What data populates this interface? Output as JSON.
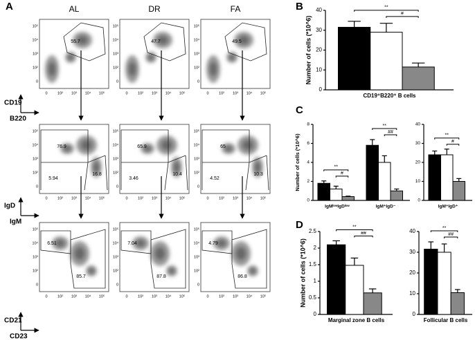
{
  "panel_labels": [
    "A",
    "B",
    "C",
    "D"
  ],
  "flow": {
    "columns": [
      "AL",
      "DR",
      "FA"
    ],
    "ticks": [
      "0",
      "10²",
      "10³",
      "10⁴",
      "10⁵"
    ],
    "rows": [
      {
        "y_label": "CD19",
        "x_label": "B220",
        "gates": [
          [
            55.7
          ],
          [
            47.7
          ],
          [
            49.5
          ]
        ]
      },
      {
        "y_label": "IgD",
        "x_label": "IgM",
        "gates": [
          [
            76.9,
            5.94,
            16.8
          ],
          [
            65.9,
            3.46,
            10.4
          ],
          [
            65,
            4.52,
            10.3
          ]
        ]
      },
      {
        "y_label": "CD21",
        "x_label": "CD23",
        "gates": [
          [
            6.51,
            85.7
          ],
          [
            7.04,
            87.8
          ],
          [
            4.79,
            86.8
          ]
        ]
      }
    ]
  },
  "chart_data": [
    {
      "type": "bar",
      "y_label": "Number of cells (*10^6)",
      "categories": [
        "CD19⁺B220⁺ B cells"
      ],
      "ylim": [
        0,
        40
      ],
      "yticks": [
        0,
        10,
        20,
        30,
        40
      ],
      "series": [
        {
          "color": "#000000",
          "values": [
            31.5
          ],
          "errors": [
            3
          ]
        },
        {
          "color": "#ffffff",
          "values": [
            29
          ],
          "errors": [
            4.5
          ]
        },
        {
          "color": "#888888",
          "values": [
            11.5
          ],
          "errors": [
            2
          ]
        }
      ],
      "significance": [
        [
          "**",
          "#"
        ]
      ]
    },
    {
      "type": "bar",
      "y_label": "Number of cells (*10^6)",
      "categories": [
        "IgMˡᵒʷIgDˡᵒʷ",
        "IgM⁺IgD⁻"
      ],
      "ylim": [
        0,
        8
      ],
      "yticks": [
        0,
        2,
        4,
        6,
        8
      ],
      "series": [
        {
          "color": "#000000",
          "values": [
            1.8,
            5.8
          ],
          "errors": [
            0.25,
            0.6
          ]
        },
        {
          "color": "#ffffff",
          "values": [
            1.2,
            4.0
          ],
          "errors": [
            0.3,
            0.7
          ]
        },
        {
          "color": "#888888",
          "values": [
            0.4,
            1.0
          ],
          "errors": [
            0.05,
            0.2
          ]
        }
      ],
      "significance": [
        [
          "**",
          "#"
        ],
        [
          "**",
          "##"
        ]
      ]
    },
    {
      "type": "bar",
      "categories": [
        "IgM⁺IgD⁺"
      ],
      "ylim": [
        0,
        40
      ],
      "yticks": [
        0,
        10,
        20,
        30,
        40
      ],
      "series": [
        {
          "color": "#000000",
          "values": [
            24
          ],
          "errors": [
            2
          ]
        },
        {
          "color": "#ffffff",
          "values": [
            24
          ],
          "errors": [
            3
          ]
        },
        {
          "color": "#888888",
          "values": [
            10
          ],
          "errors": [
            1.5
          ]
        }
      ],
      "significance": [
        [
          "**",
          "#"
        ]
      ]
    },
    {
      "type": "bar",
      "y_label": "Number of cells (*10^6)",
      "categories": [
        "Marginal zone B cells"
      ],
      "ylim": [
        0,
        2.5
      ],
      "yticks": [
        0,
        0.5,
        1,
        1.5,
        2,
        2.5
      ],
      "series": [
        {
          "color": "#000000",
          "values": [
            2.1
          ],
          "errors": [
            0.12
          ]
        },
        {
          "color": "#ffffff",
          "values": [
            1.48
          ],
          "errors": [
            0.22
          ]
        },
        {
          "color": "#888888",
          "values": [
            0.65
          ],
          "errors": [
            0.12
          ]
        }
      ],
      "significance": [
        [
          "**",
          "##"
        ]
      ]
    },
    {
      "type": "bar",
      "categories": [
        "Follicular B cells"
      ],
      "ylim": [
        0,
        40
      ],
      "yticks": [
        0,
        10,
        20,
        30,
        40
      ],
      "series": [
        {
          "color": "#000000",
          "values": [
            31.5
          ],
          "errors": [
            3.5
          ]
        },
        {
          "color": "#ffffff",
          "values": [
            30
          ],
          "errors": [
            4
          ]
        },
        {
          "color": "#888888",
          "values": [
            10.5
          ],
          "errors": [
            1.5
          ]
        }
      ],
      "significance": [
        [
          "**",
          "##"
        ]
      ]
    }
  ]
}
